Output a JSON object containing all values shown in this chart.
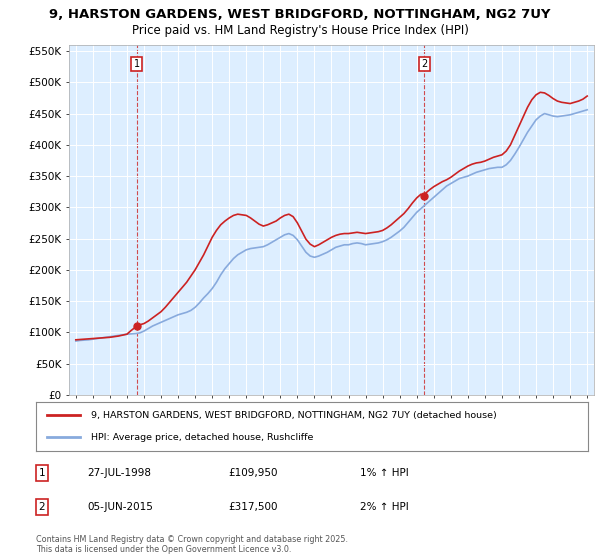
{
  "title": "9, HARSTON GARDENS, WEST BRIDGFORD, NOTTINGHAM, NG2 7UY",
  "subtitle": "Price paid vs. HM Land Registry's House Price Index (HPI)",
  "bg_color": "#ffffff",
  "plot_bg_color": "#ddeeff",
  "grid_color": "#ffffff",
  "line1_color": "#cc2222",
  "line2_color": "#88aadd",
  "vline_color": "#cc2222",
  "dot_color": "#cc2222",
  "legend_label1": "9, HARSTON GARDENS, WEST BRIDGFORD, NOTTINGHAM, NG2 7UY (detached house)",
  "legend_label2": "HPI: Average price, detached house, Rushcliffe",
  "annotation1_date": "27-JUL-1998",
  "annotation1_price": "£109,950",
  "annotation1_hpi": "1% ↑ HPI",
  "annotation2_date": "05-JUN-2015",
  "annotation2_price": "£317,500",
  "annotation2_hpi": "2% ↑ HPI",
  "footer": "Contains HM Land Registry data © Crown copyright and database right 2025.\nThis data is licensed under the Open Government Licence v3.0.",
  "sale1_x": 1998.58,
  "sale1_y": 109950,
  "sale2_x": 2015.43,
  "sale2_y": 317500,
  "ylim": [
    0,
    560000
  ],
  "yticks": [
    0,
    50000,
    100000,
    150000,
    200000,
    250000,
    300000,
    350000,
    400000,
    450000,
    500000,
    550000
  ],
  "ytick_labels": [
    "£0",
    "£50K",
    "£100K",
    "£150K",
    "£200K",
    "£250K",
    "£300K",
    "£350K",
    "£400K",
    "£450K",
    "£500K",
    "£550K"
  ],
  "xlim_left": 1994.6,
  "xlim_right": 2025.4,
  "hpi_years": [
    1995.0,
    1995.25,
    1995.5,
    1995.75,
    1996.0,
    1996.25,
    1996.5,
    1996.75,
    1997.0,
    1997.25,
    1997.5,
    1997.75,
    1998.0,
    1998.25,
    1998.5,
    1998.75,
    1999.0,
    1999.25,
    1999.5,
    1999.75,
    2000.0,
    2000.25,
    2000.5,
    2000.75,
    2001.0,
    2001.25,
    2001.5,
    2001.75,
    2002.0,
    2002.25,
    2002.5,
    2002.75,
    2003.0,
    2003.25,
    2003.5,
    2003.75,
    2004.0,
    2004.25,
    2004.5,
    2004.75,
    2005.0,
    2005.25,
    2005.5,
    2005.75,
    2006.0,
    2006.25,
    2006.5,
    2006.75,
    2007.0,
    2007.25,
    2007.5,
    2007.75,
    2008.0,
    2008.25,
    2008.5,
    2008.75,
    2009.0,
    2009.25,
    2009.5,
    2009.75,
    2010.0,
    2010.25,
    2010.5,
    2010.75,
    2011.0,
    2011.25,
    2011.5,
    2011.75,
    2012.0,
    2012.25,
    2012.5,
    2012.75,
    2013.0,
    2013.25,
    2013.5,
    2013.75,
    2014.0,
    2014.25,
    2014.5,
    2014.75,
    2015.0,
    2015.25,
    2015.5,
    2015.75,
    2016.0,
    2016.25,
    2016.5,
    2016.75,
    2017.0,
    2017.25,
    2017.5,
    2017.75,
    2018.0,
    2018.25,
    2018.5,
    2018.75,
    2019.0,
    2019.25,
    2019.5,
    2019.75,
    2020.0,
    2020.25,
    2020.5,
    2020.75,
    2021.0,
    2021.25,
    2021.5,
    2021.75,
    2022.0,
    2022.25,
    2022.5,
    2022.75,
    2023.0,
    2023.25,
    2023.5,
    2023.75,
    2024.0,
    2024.25,
    2024.5,
    2024.75,
    2025.0
  ],
  "hpi_values": [
    86000,
    87000,
    87500,
    88000,
    89000,
    90000,
    91000,
    92000,
    93000,
    94000,
    95000,
    96000,
    97000,
    97500,
    98000,
    99000,
    102000,
    106000,
    110000,
    113000,
    116000,
    119000,
    122000,
    125000,
    128000,
    130000,
    132000,
    135000,
    140000,
    147000,
    155000,
    162000,
    170000,
    180000,
    192000,
    202000,
    210000,
    218000,
    224000,
    228000,
    232000,
    234000,
    235000,
    236000,
    237000,
    240000,
    244000,
    248000,
    252000,
    256000,
    258000,
    255000,
    248000,
    238000,
    228000,
    222000,
    220000,
    222000,
    225000,
    228000,
    232000,
    236000,
    238000,
    240000,
    240000,
    242000,
    243000,
    242000,
    240000,
    241000,
    242000,
    243000,
    245000,
    248000,
    252000,
    257000,
    262000,
    268000,
    276000,
    284000,
    292000,
    298000,
    304000,
    310000,
    316000,
    322000,
    328000,
    334000,
    338000,
    342000,
    346000,
    348000,
    350000,
    353000,
    356000,
    358000,
    360000,
    362000,
    363000,
    364000,
    364000,
    368000,
    375000,
    385000,
    396000,
    408000,
    420000,
    430000,
    440000,
    446000,
    450000,
    448000,
    446000,
    445000,
    446000,
    447000,
    448000,
    450000,
    452000,
    454000,
    456000
  ],
  "price_years": [
    1995.0,
    1995.25,
    1995.5,
    1995.75,
    1996.0,
    1996.25,
    1996.5,
    1996.75,
    1997.0,
    1997.25,
    1997.5,
    1997.75,
    1998.0,
    1998.25,
    1998.58,
    1998.75,
    1999.0,
    1999.25,
    1999.5,
    1999.75,
    2000.0,
    2000.25,
    2000.5,
    2000.75,
    2001.0,
    2001.25,
    2001.5,
    2001.75,
    2002.0,
    2002.25,
    2002.5,
    2002.75,
    2003.0,
    2003.25,
    2003.5,
    2003.75,
    2004.0,
    2004.25,
    2004.5,
    2004.75,
    2005.0,
    2005.25,
    2005.5,
    2005.75,
    2006.0,
    2006.25,
    2006.5,
    2006.75,
    2007.0,
    2007.25,
    2007.5,
    2007.75,
    2008.0,
    2008.25,
    2008.5,
    2008.75,
    2009.0,
    2009.25,
    2009.5,
    2009.75,
    2010.0,
    2010.25,
    2010.5,
    2010.75,
    2011.0,
    2011.25,
    2011.5,
    2011.75,
    2012.0,
    2012.25,
    2012.5,
    2012.75,
    2013.0,
    2013.25,
    2013.5,
    2013.75,
    2014.0,
    2014.25,
    2014.5,
    2014.75,
    2015.0,
    2015.25,
    2015.43,
    2015.5,
    2015.75,
    2016.0,
    2016.25,
    2016.5,
    2016.75,
    2017.0,
    2017.25,
    2017.5,
    2017.75,
    2018.0,
    2018.25,
    2018.5,
    2018.75,
    2019.0,
    2019.25,
    2019.5,
    2019.75,
    2020.0,
    2020.25,
    2020.5,
    2020.75,
    2021.0,
    2021.25,
    2021.5,
    2021.75,
    2022.0,
    2022.25,
    2022.5,
    2022.75,
    2023.0,
    2023.25,
    2023.5,
    2023.75,
    2024.0,
    2024.25,
    2024.5,
    2024.75,
    2025.0
  ],
  "price_values": [
    88000,
    88500,
    89000,
    89500,
    90000,
    90500,
    91000,
    91500,
    92000,
    93000,
    94000,
    95500,
    97000,
    103000,
    109950,
    112000,
    114000,
    118000,
    123000,
    128000,
    133000,
    140000,
    148000,
    156000,
    164000,
    172000,
    180000,
    190000,
    200000,
    212000,
    224000,
    238000,
    252000,
    263000,
    272000,
    278000,
    283000,
    287000,
    289000,
    288000,
    287000,
    283000,
    278000,
    273000,
    270000,
    272000,
    275000,
    278000,
    283000,
    287000,
    289000,
    285000,
    275000,
    262000,
    249000,
    241000,
    237000,
    240000,
    244000,
    248000,
    252000,
    255000,
    257000,
    258000,
    258000,
    259000,
    260000,
    259000,
    258000,
    259000,
    260000,
    261000,
    263000,
    267000,
    272000,
    278000,
    284000,
    290000,
    298000,
    307000,
    315000,
    321000,
    317500,
    322000,
    328000,
    333000,
    337000,
    341000,
    344000,
    348000,
    353000,
    358000,
    362000,
    366000,
    369000,
    371000,
    372000,
    374000,
    377000,
    380000,
    382000,
    384000,
    390000,
    400000,
    415000,
    430000,
    445000,
    460000,
    472000,
    480000,
    484000,
    483000,
    479000,
    474000,
    470000,
    468000,
    467000,
    466000,
    468000,
    470000,
    473000,
    478000
  ]
}
